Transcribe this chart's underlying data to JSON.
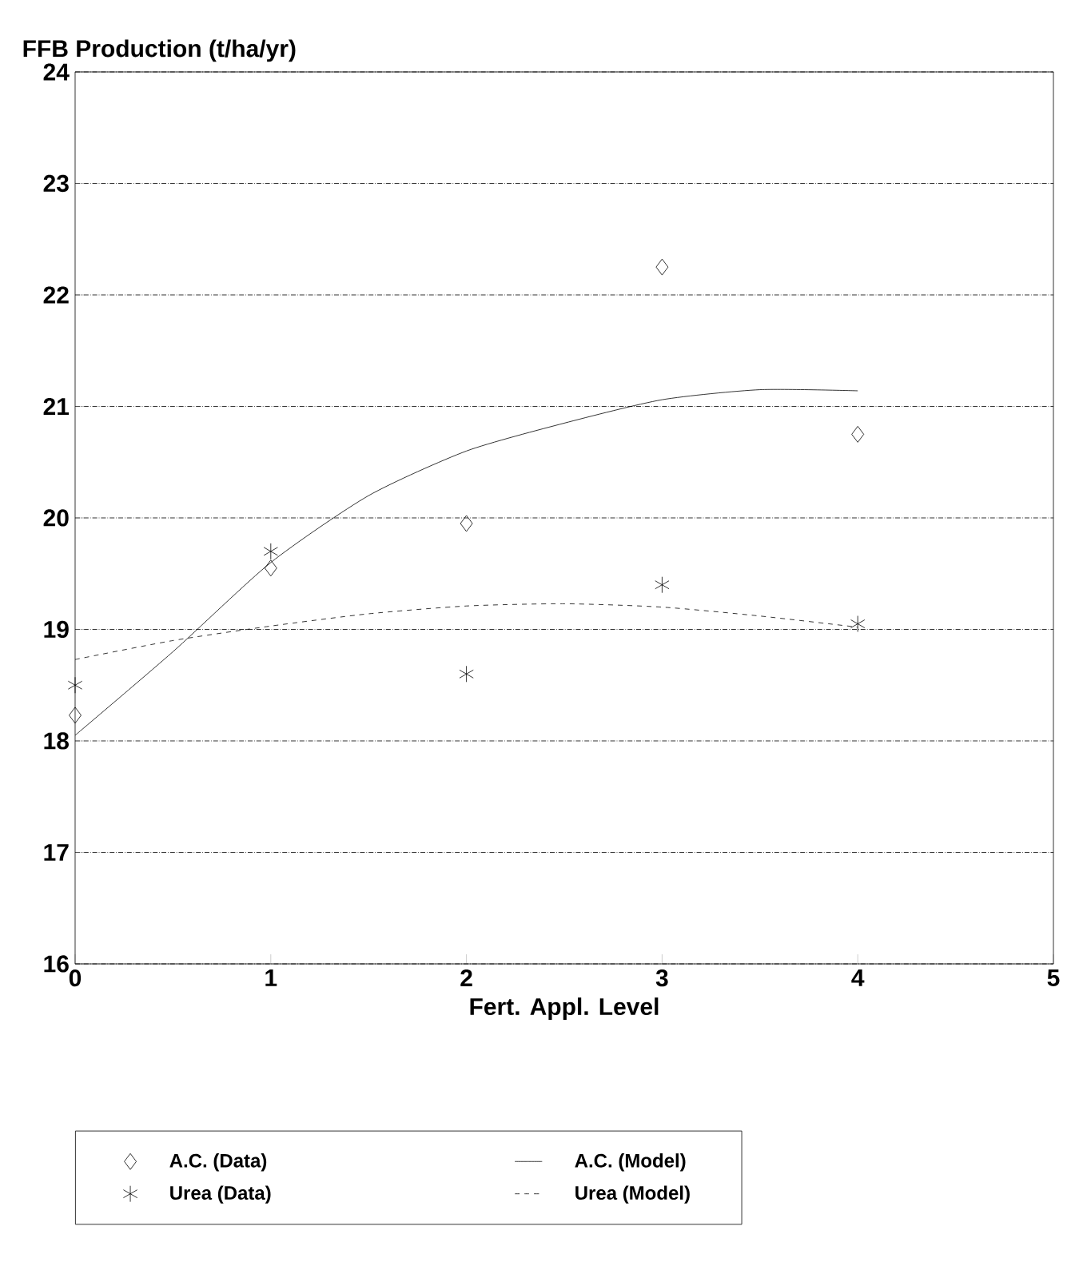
{
  "chart_data": {
    "type": "scatter",
    "ylabel": "FFB Production (t/ha/yr)",
    "xlabel": "Fert. Appl. Level",
    "xlim": [
      0,
      5
    ],
    "xticks": [
      0,
      1,
      2,
      3,
      4,
      5
    ],
    "ylim": [
      16,
      24
    ],
    "yticks": [
      16,
      17,
      18,
      19,
      20,
      21,
      22,
      23,
      24
    ],
    "grid": "y",
    "legend": "bottom",
    "series": [
      {
        "name": "A.C. (Data)",
        "marker": "diamond",
        "color": "#000000",
        "x": [
          0,
          1,
          2,
          3,
          4
        ],
        "values": [
          18.23,
          19.55,
          19.95,
          22.25,
          20.75
        ]
      },
      {
        "name": "A.C. (Model)",
        "type": "line",
        "marker": "none",
        "line_style": "solid",
        "color": "#000000",
        "x": [
          0,
          0.5,
          1,
          1.5,
          2,
          2.5,
          3,
          3.5,
          4
        ],
        "values": [
          18.05,
          18.8,
          19.6,
          20.2,
          20.6,
          20.85,
          21.06,
          21.15,
          21.14
        ]
      },
      {
        "name": "Urea (Data)",
        "marker": "cross",
        "color": "#000000",
        "x": [
          0,
          1,
          2,
          3,
          4
        ],
        "values": [
          18.5,
          19.7,
          18.6,
          19.4,
          19.05
        ]
      },
      {
        "name": "Urea (Model)",
        "type": "line",
        "marker": "none",
        "line_style": "dashed",
        "color": "#000000",
        "x": [
          0,
          0.5,
          1,
          1.5,
          2,
          2.5,
          3,
          3.5,
          4
        ],
        "values": [
          18.73,
          18.9,
          19.03,
          19.14,
          19.21,
          19.23,
          19.2,
          19.12,
          19.02
        ]
      }
    ]
  }
}
